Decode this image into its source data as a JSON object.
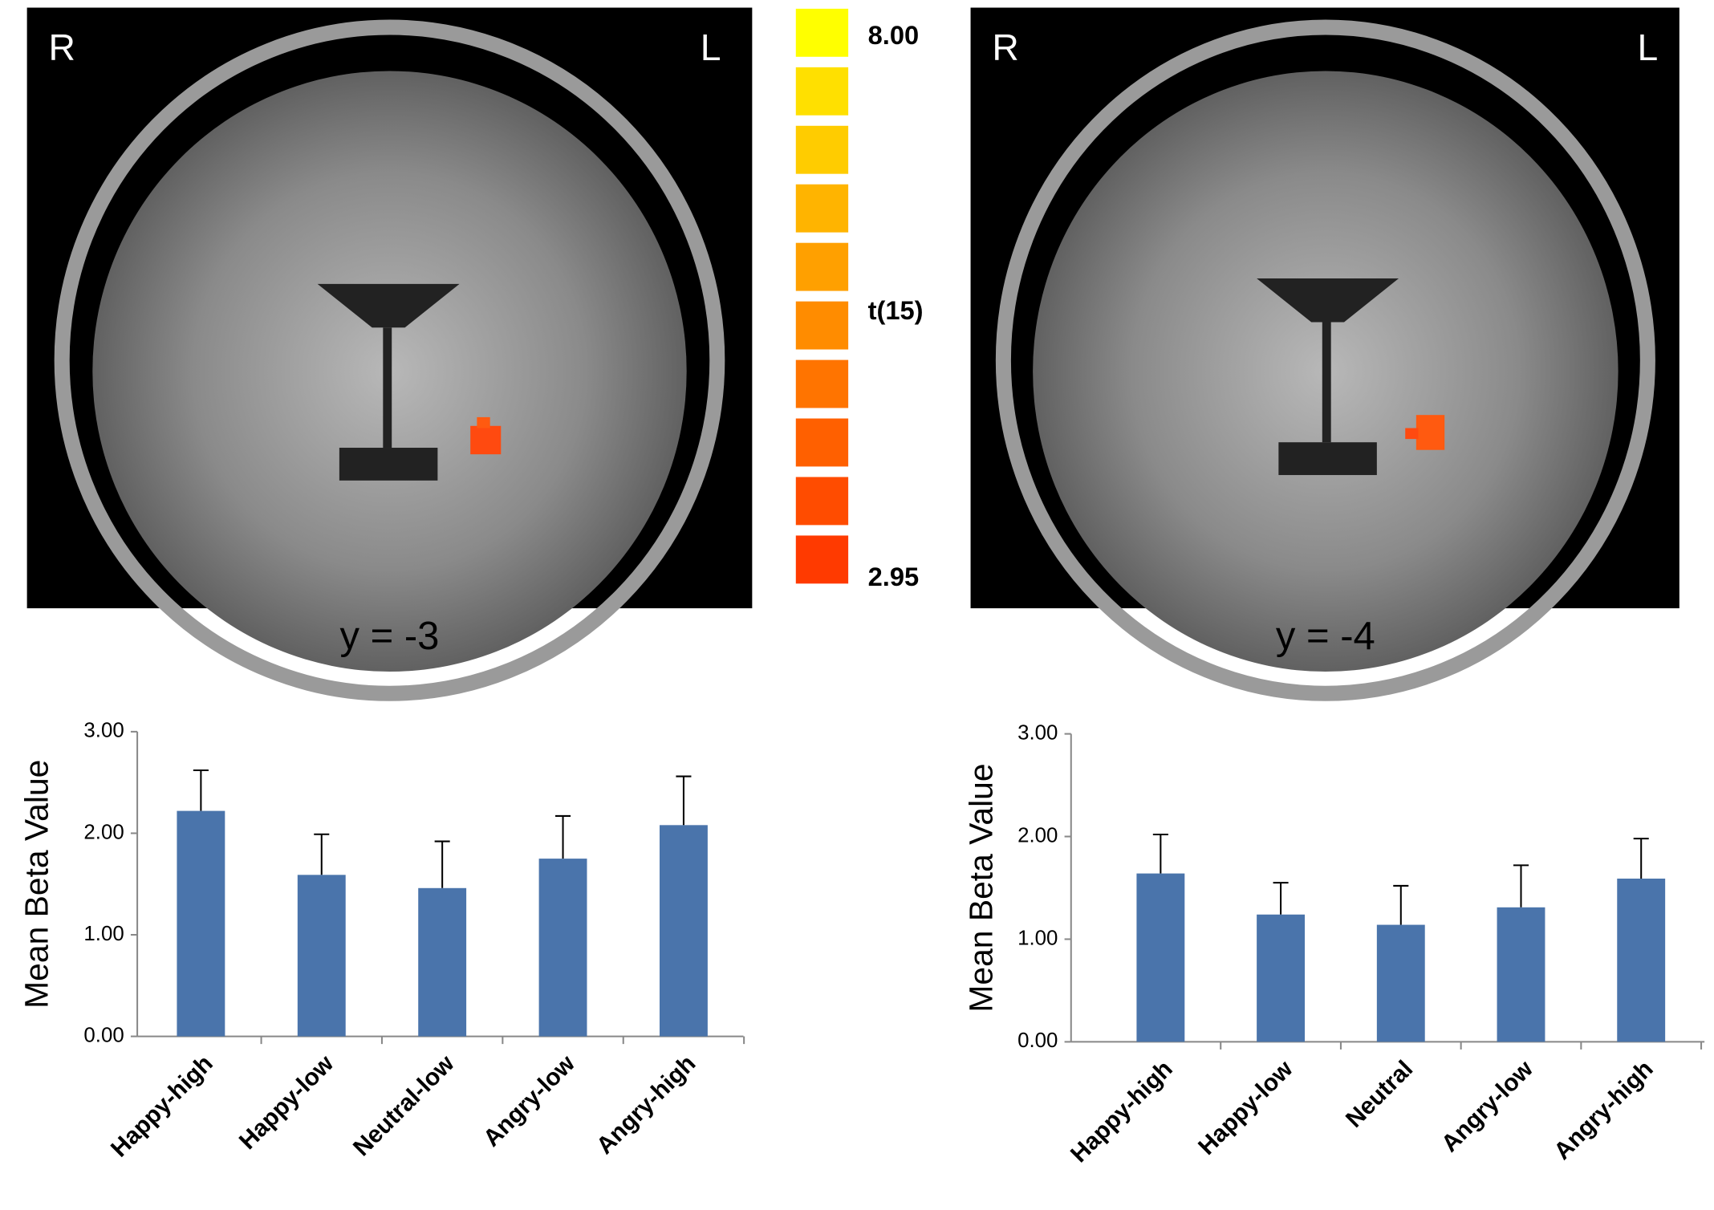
{
  "panels": [
    {
      "left_label": "R",
      "right_label": "L",
      "caption": "y = -3"
    },
    {
      "left_label": "R",
      "right_label": "L",
      "caption": "y = -4"
    }
  ],
  "colorbar": {
    "title": "t(15)",
    "max": {
      "value": 8,
      "label": "8.00"
    },
    "min": {
      "value": 2.95,
      "label": "2.95"
    }
  },
  "chart_data": [
    {
      "type": "bar",
      "y_label": "Mean Beta Value",
      "categories": [
        "Happy-high",
        "Happy-low",
        "Neutral-low",
        "Angry-low",
        "Angry-high"
      ],
      "series": [
        {
          "color": "#4a74ab",
          "values": [
            2.22,
            1.59,
            1.46,
            1.75,
            2.08
          ],
          "errors": [
            0.4,
            0.4,
            0.46,
            0.42,
            0.48
          ]
        }
      ],
      "ylim": [
        0,
        3
      ],
      "yticks": [
        {
          "value": 0,
          "label": "0.00"
        },
        {
          "value": 1,
          "label": "1.00"
        },
        {
          "value": 2,
          "label": "2.00"
        },
        {
          "value": 3,
          "label": "3.00"
        }
      ]
    },
    {
      "type": "bar",
      "y_label": "Mean Beta Value",
      "categories": [
        "Happy-high",
        "Happy-low",
        "Neutral",
        "Angry-low",
        "Angry-high"
      ],
      "series": [
        {
          "color": "#4a74ab",
          "values": [
            1.64,
            1.24,
            1.14,
            1.31,
            1.59
          ],
          "errors": [
            0.38,
            0.31,
            0.38,
            0.41,
            0.39
          ]
        }
      ],
      "ylim": [
        0,
        3
      ],
      "yticks": [
        {
          "value": 0,
          "label": "0.00"
        },
        {
          "value": 1,
          "label": "1.00"
        },
        {
          "value": 2,
          "label": "2.00"
        },
        {
          "value": 3,
          "label": "3.00"
        }
      ]
    }
  ]
}
